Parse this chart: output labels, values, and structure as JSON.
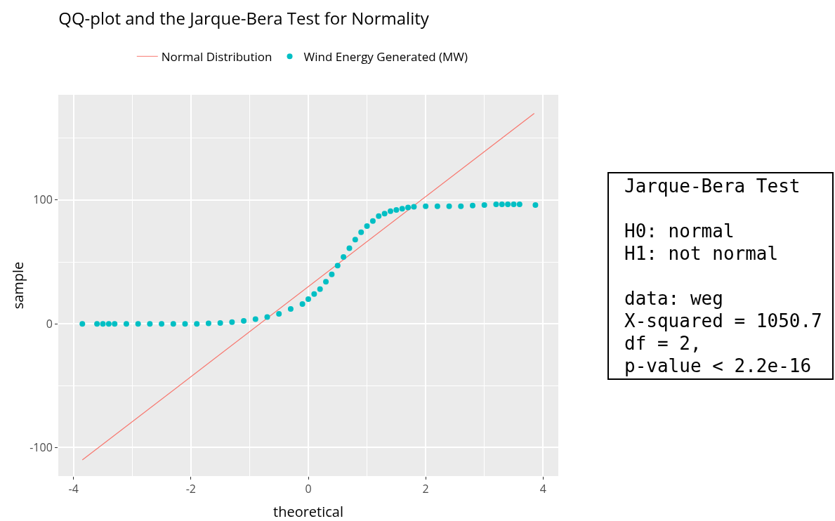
{
  "chart_data": {
    "type": "scatter",
    "title": "QQ-plot and the Jarque-Bera Test for Normality",
    "xlabel": "theoretical",
    "ylabel": "sample",
    "xlim": [
      -4.26,
      4.26
    ],
    "ylim": [
      -123,
      185
    ],
    "xticks": [
      -4,
      -2,
      0,
      2,
      4
    ],
    "yticks": [
      -100,
      0,
      100
    ],
    "grid": true,
    "legend": "top",
    "series": [
      {
        "name": "Normal Distribution",
        "type": "line",
        "color": "#f8766d",
        "x": [
          -3.85,
          3.85
        ],
        "values": [
          -110,
          170
        ]
      },
      {
        "name": "Wind Energy Generated (MW)",
        "marker": "circle",
        "color": "#00bfc4",
        "x": [
          -3.85,
          -3.6,
          -3.5,
          -3.4,
          -3.3,
          -3.1,
          -2.9,
          -2.7,
          -2.5,
          -2.3,
          -2.1,
          -1.9,
          -1.7,
          -1.5,
          -1.3,
          -1.1,
          -0.9,
          -0.7,
          -0.5,
          -0.3,
          -0.1,
          0,
          0.1,
          0.2,
          0.3,
          0.4,
          0.5,
          0.6,
          0.7,
          0.8,
          0.9,
          1,
          1.1,
          1.2,
          1.3,
          1.4,
          1.5,
          1.6,
          1.7,
          1.8,
          2,
          2.2,
          2.4,
          2.6,
          2.8,
          3,
          3.2,
          3.3,
          3.4,
          3.5,
          3.6,
          3.87
        ],
        "values": [
          0,
          0,
          0,
          0,
          0,
          0,
          0,
          0,
          0,
          0,
          0,
          0,
          0.3,
          0.7,
          1.3,
          2.3,
          3.8,
          5.5,
          8,
          12,
          16,
          20,
          24,
          28,
          34,
          40,
          47,
          54,
          61,
          68,
          74,
          79,
          83,
          87,
          89,
          91,
          92,
          93,
          94,
          94.5,
          95,
          95,
          95,
          95,
          95.5,
          96,
          96.5,
          96.5,
          96.5,
          96.5,
          96.5,
          96
        ]
      }
    ],
    "annotations": [
      "Jarque-Bera Test",
      "H0: normal",
      "H1: not normal",
      "data: weg",
      "X-squared = 1050.7",
      "df = 2,",
      "p-value < 2.2e-16"
    ]
  }
}
